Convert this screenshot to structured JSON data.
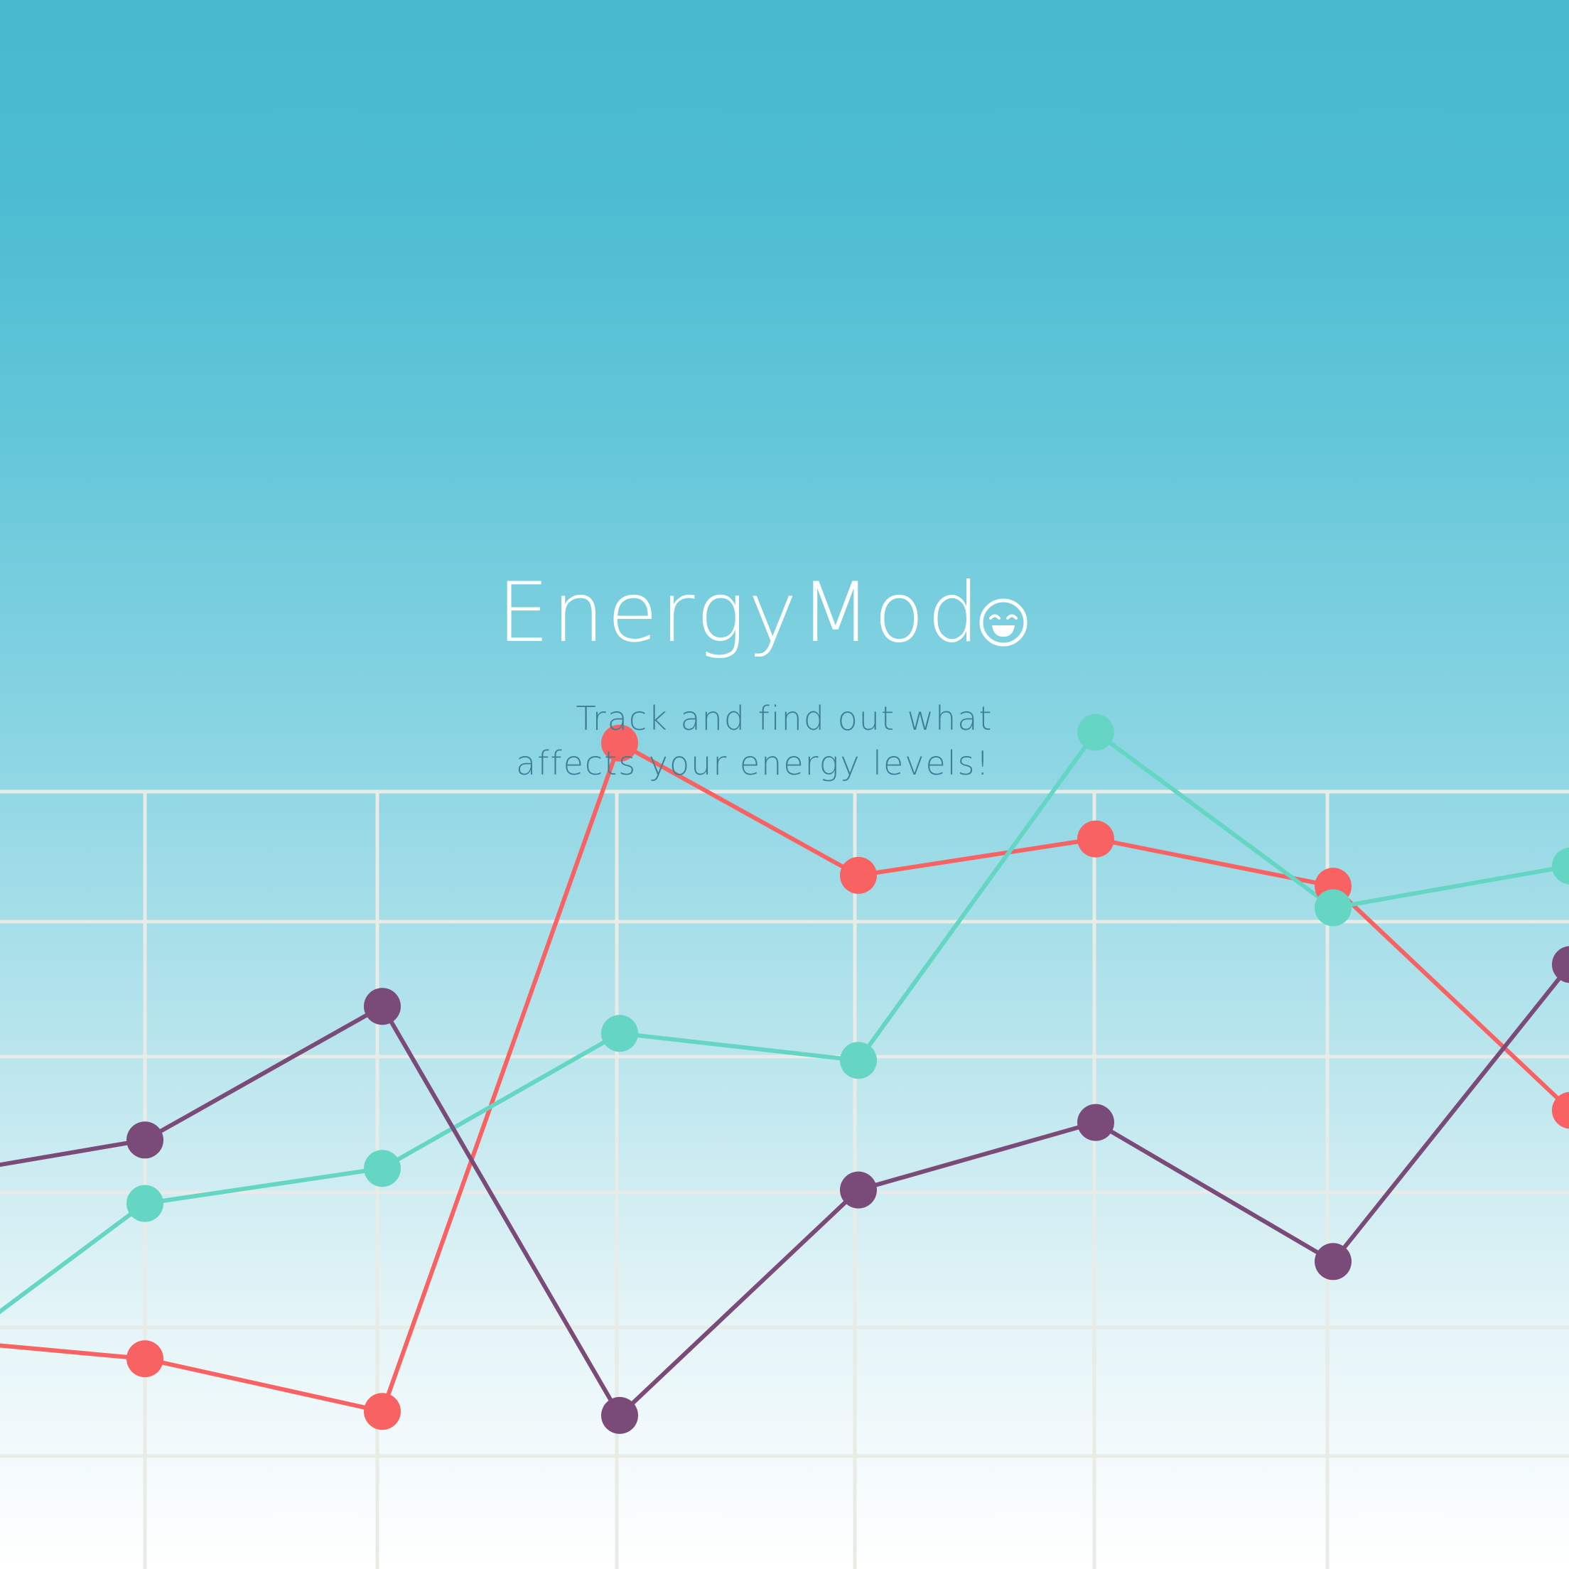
{
  "app": {
    "name": "EnergyMod",
    "logo_icon": "smiley-face-icon",
    "tagline_line1": "Track and find out what",
    "tagline_line2": "affects your energy levels!"
  },
  "colors": {
    "background_top": "#47b9cf",
    "background_bottom": "#ffffff",
    "grid": "#e8ebe6",
    "text_white": "#ffffff",
    "tagline": "#3f7d95"
  },
  "chart_data": {
    "type": "line",
    "grid": true,
    "series": [
      {
        "color": "#f96262",
        "values": [
          {
            "x": 0,
            "y": 0.87
          },
          {
            "x": 1,
            "y": 0.71
          },
          {
            "x": 2,
            "y": 0.32
          },
          {
            "x": 3,
            "y": 5.27
          },
          {
            "x": 4,
            "y": 4.29
          },
          {
            "x": 5,
            "y": 4.56
          },
          {
            "x": 6,
            "y": 4.21
          },
          {
            "x": 7,
            "y": 2.55
          },
          {
            "x": 8,
            "y": 2.21
          }
        ]
      },
      {
        "color": "#66d6c4",
        "values": [
          {
            "x": 0,
            "y": 0.55
          },
          {
            "x": 1,
            "y": 1.86
          },
          {
            "x": 2,
            "y": 2.12
          },
          {
            "x": 3,
            "y": 3.12
          },
          {
            "x": 4,
            "y": 2.92
          },
          {
            "x": 5,
            "y": 5.35
          },
          {
            "x": 6,
            "y": 4.05
          },
          {
            "x": 7,
            "y": 4.36
          },
          {
            "x": 8,
            "y": 2.83
          }
        ]
      },
      {
        "color": "#7a4b78",
        "values": [
          {
            "x": 0,
            "y": 2.03
          },
          {
            "x": 1,
            "y": 2.33
          },
          {
            "x": 2,
            "y": 3.32
          },
          {
            "x": 3,
            "y": 0.29
          },
          {
            "x": 4,
            "y": 1.96
          },
          {
            "x": 5,
            "y": 2.46
          },
          {
            "x": 6,
            "y": 1.43
          },
          {
            "x": 7,
            "y": 3.63
          },
          {
            "x": 8,
            "y": 1.81
          }
        ]
      }
    ]
  }
}
